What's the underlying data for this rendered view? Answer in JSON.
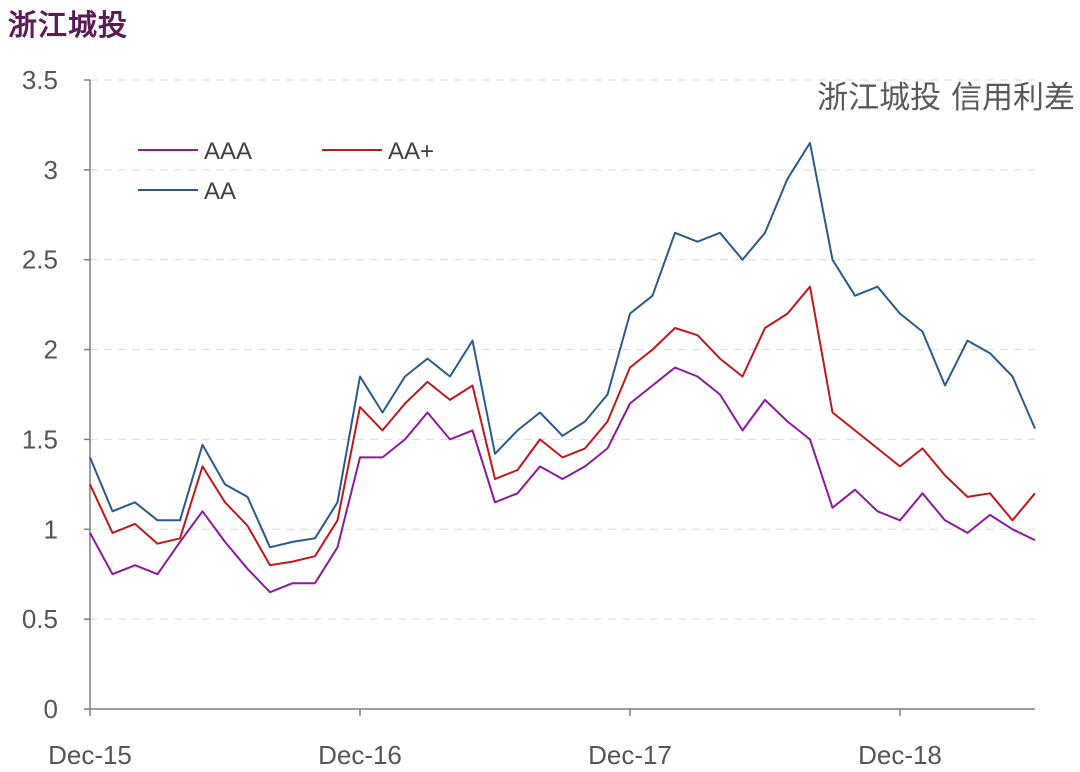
{
  "page_title": "浙江城投",
  "chart_data": {
    "type": "line",
    "title": "浙江城投 信用利差",
    "xlabel": "",
    "ylabel": "",
    "ylim": [
      0,
      3.5
    ],
    "yticks": [
      "0",
      "0.5",
      "1",
      "1.5",
      "2",
      "2.5",
      "3",
      "3.5"
    ],
    "xtick_labels": [
      "Dec-15",
      "Dec-16",
      "Dec-17",
      "Dec-18"
    ],
    "x_range": [
      "2015-12",
      "2019-06"
    ],
    "grid": "horizontal dashed",
    "legend_position": "top-left",
    "colors": {
      "AAA": "#8b1a9c",
      "AA+": "#c0181a",
      "AA": "#2a5a8c"
    },
    "series": [
      {
        "name": "AAA",
        "points": [
          [
            "2015-12",
            0.98
          ],
          [
            "2016-01",
            0.75
          ],
          [
            "2016-02",
            0.8
          ],
          [
            "2016-03",
            0.75
          ],
          [
            "2016-04",
            0.93
          ],
          [
            "2016-05",
            1.1
          ],
          [
            "2016-06",
            0.93
          ],
          [
            "2016-07",
            0.78
          ],
          [
            "2016-08",
            0.65
          ],
          [
            "2016-09",
            0.7
          ],
          [
            "2016-10",
            0.7
          ],
          [
            "2016-11",
            0.9
          ],
          [
            "2016-12",
            1.4
          ],
          [
            "2017-01",
            1.4
          ],
          [
            "2017-02",
            1.5
          ],
          [
            "2017-03",
            1.65
          ],
          [
            "2017-04",
            1.5
          ],
          [
            "2017-05",
            1.55
          ],
          [
            "2017-06",
            1.15
          ],
          [
            "2017-07",
            1.2
          ],
          [
            "2017-08",
            1.35
          ],
          [
            "2017-09",
            1.28
          ],
          [
            "2017-10",
            1.35
          ],
          [
            "2017-11",
            1.45
          ],
          [
            "2017-12",
            1.7
          ],
          [
            "2018-01",
            1.8
          ],
          [
            "2018-02",
            1.9
          ],
          [
            "2018-03",
            1.85
          ],
          [
            "2018-04",
            1.75
          ],
          [
            "2018-05",
            1.55
          ],
          [
            "2018-06",
            1.72
          ],
          [
            "2018-07",
            1.6
          ],
          [
            "2018-08",
            1.5
          ],
          [
            "2018-09",
            1.12
          ],
          [
            "2018-10",
            1.22
          ],
          [
            "2018-11",
            1.1
          ],
          [
            "2018-12",
            1.05
          ],
          [
            "2019-01",
            1.2
          ],
          [
            "2019-02",
            1.05
          ],
          [
            "2019-03",
            0.98
          ],
          [
            "2019-04",
            1.08
          ],
          [
            "2019-05",
            1.0
          ],
          [
            "2019-06",
            0.94
          ]
        ]
      },
      {
        "name": "AA+",
        "points": [
          [
            "2015-12",
            1.25
          ],
          [
            "2016-01",
            0.98
          ],
          [
            "2016-02",
            1.03
          ],
          [
            "2016-03",
            0.92
          ],
          [
            "2016-04",
            0.95
          ],
          [
            "2016-05",
            1.35
          ],
          [
            "2016-06",
            1.15
          ],
          [
            "2016-07",
            1.02
          ],
          [
            "2016-08",
            0.8
          ],
          [
            "2016-09",
            0.82
          ],
          [
            "2016-10",
            0.85
          ],
          [
            "2016-11",
            1.05
          ],
          [
            "2016-12",
            1.68
          ],
          [
            "2017-01",
            1.55
          ],
          [
            "2017-02",
            1.7
          ],
          [
            "2017-03",
            1.82
          ],
          [
            "2017-04",
            1.72
          ],
          [
            "2017-05",
            1.8
          ],
          [
            "2017-06",
            1.28
          ],
          [
            "2017-07",
            1.33
          ],
          [
            "2017-08",
            1.5
          ],
          [
            "2017-09",
            1.4
          ],
          [
            "2017-10",
            1.45
          ],
          [
            "2017-11",
            1.6
          ],
          [
            "2017-12",
            1.9
          ],
          [
            "2018-01",
            2.0
          ],
          [
            "2018-02",
            2.12
          ],
          [
            "2018-03",
            2.08
          ],
          [
            "2018-04",
            1.95
          ],
          [
            "2018-05",
            1.85
          ],
          [
            "2018-06",
            2.12
          ],
          [
            "2018-07",
            2.2
          ],
          [
            "2018-08",
            2.35
          ],
          [
            "2018-09",
            1.65
          ],
          [
            "2018-10",
            1.55
          ],
          [
            "2018-11",
            1.45
          ],
          [
            "2018-12",
            1.35
          ],
          [
            "2019-01",
            1.45
          ],
          [
            "2019-02",
            1.3
          ],
          [
            "2019-03",
            1.18
          ],
          [
            "2019-04",
            1.2
          ],
          [
            "2019-05",
            1.05
          ],
          [
            "2019-06",
            1.2
          ]
        ]
      },
      {
        "name": "AA",
        "points": [
          [
            "2015-12",
            1.4
          ],
          [
            "2016-01",
            1.1
          ],
          [
            "2016-02",
            1.15
          ],
          [
            "2016-03",
            1.05
          ],
          [
            "2016-04",
            1.05
          ],
          [
            "2016-05",
            1.47
          ],
          [
            "2016-06",
            1.25
          ],
          [
            "2016-07",
            1.18
          ],
          [
            "2016-08",
            0.9
          ],
          [
            "2016-09",
            0.93
          ],
          [
            "2016-10",
            0.95
          ],
          [
            "2016-11",
            1.15
          ],
          [
            "2016-12",
            1.85
          ],
          [
            "2017-01",
            1.65
          ],
          [
            "2017-02",
            1.85
          ],
          [
            "2017-03",
            1.95
          ],
          [
            "2017-04",
            1.85
          ],
          [
            "2017-05",
            2.05
          ],
          [
            "2017-06",
            1.42
          ],
          [
            "2017-07",
            1.55
          ],
          [
            "2017-08",
            1.65
          ],
          [
            "2017-09",
            1.52
          ],
          [
            "2017-10",
            1.6
          ],
          [
            "2017-11",
            1.75
          ],
          [
            "2017-12",
            2.2
          ],
          [
            "2018-01",
            2.3
          ],
          [
            "2018-02",
            2.65
          ],
          [
            "2018-03",
            2.6
          ],
          [
            "2018-04",
            2.65
          ],
          [
            "2018-05",
            2.5
          ],
          [
            "2018-06",
            2.65
          ],
          [
            "2018-07",
            2.95
          ],
          [
            "2018-08",
            3.15
          ],
          [
            "2018-09",
            2.5
          ],
          [
            "2018-10",
            2.3
          ],
          [
            "2018-11",
            2.35
          ],
          [
            "2018-12",
            2.2
          ],
          [
            "2019-01",
            2.1
          ],
          [
            "2019-02",
            1.8
          ],
          [
            "2019-03",
            2.05
          ],
          [
            "2019-04",
            1.98
          ],
          [
            "2019-05",
            1.85
          ],
          [
            "2019-06",
            1.56
          ]
        ]
      }
    ]
  }
}
